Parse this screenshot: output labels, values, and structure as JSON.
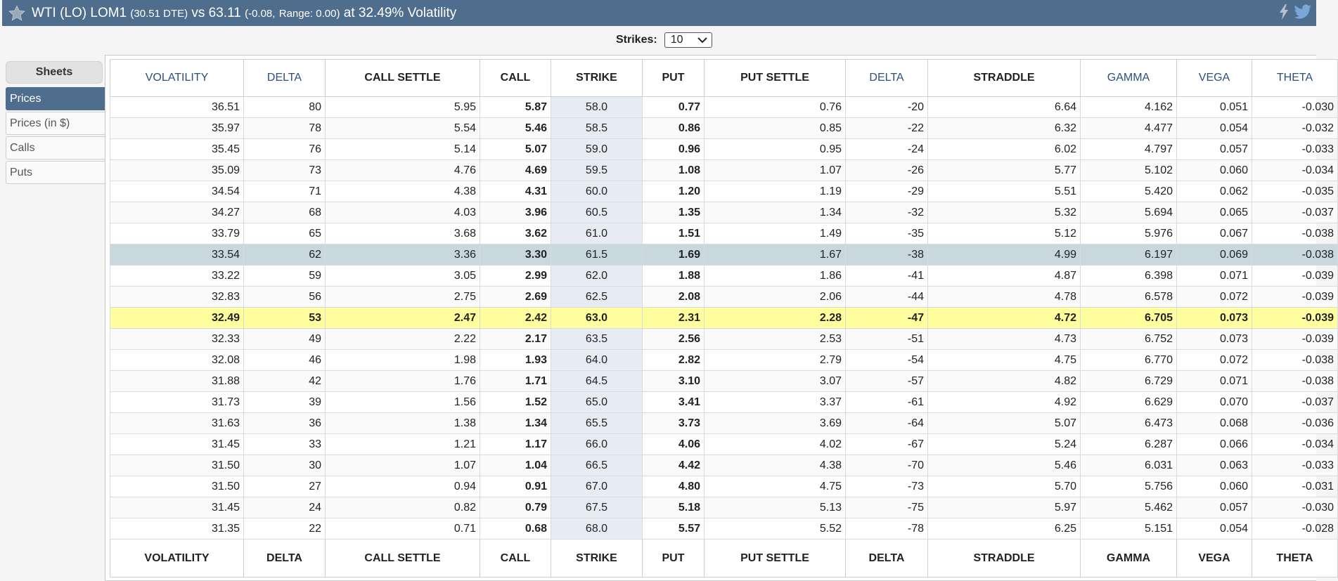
{
  "header": {
    "symbol": "WTI (LO) LOM1",
    "dte": "(30.51 DTE)",
    "vs_label": "vs 63.11",
    "change": "(-0.08,",
    "range": "Range: 0.00)",
    "volatility_text": "at 32.49% Volatility",
    "icons": [
      "star-icon",
      "lightning-icon",
      "twitter-icon"
    ],
    "color": "#4f6d8d"
  },
  "strikes": {
    "label": "Strikes:",
    "selected": "10"
  },
  "sidebar": {
    "title": "Sheets",
    "items": [
      {
        "label": "Prices",
        "active": true
      },
      {
        "label": "Prices (in $)",
        "active": false
      },
      {
        "label": "Calls",
        "active": false
      },
      {
        "label": "Puts",
        "active": false
      }
    ]
  },
  "table": {
    "columns": [
      "VOLATILITY",
      "DELTA",
      "CALL SETTLE",
      "CALL",
      "STRIKE",
      "PUT",
      "PUT SETTLE",
      "DELTA",
      "STRADDLE",
      "GAMMA",
      "VEGA",
      "THETA"
    ],
    "rows": [
      [
        "36.51",
        "80",
        "5.95",
        "5.87",
        "58.0",
        "0.77",
        "0.76",
        "-20",
        "6.64",
        "4.162",
        "0.051",
        "-0.030"
      ],
      [
        "35.97",
        "78",
        "5.54",
        "5.46",
        "58.5",
        "0.86",
        "0.85",
        "-22",
        "6.32",
        "4.477",
        "0.054",
        "-0.032"
      ],
      [
        "35.45",
        "76",
        "5.14",
        "5.07",
        "59.0",
        "0.96",
        "0.95",
        "-24",
        "6.02",
        "4.797",
        "0.057",
        "-0.033"
      ],
      [
        "35.09",
        "73",
        "4.76",
        "4.69",
        "59.5",
        "1.08",
        "1.07",
        "-26",
        "5.77",
        "5.102",
        "0.060",
        "-0.034"
      ],
      [
        "34.54",
        "71",
        "4.38",
        "4.31",
        "60.0",
        "1.20",
        "1.19",
        "-29",
        "5.51",
        "5.420",
        "0.062",
        "-0.035"
      ],
      [
        "34.27",
        "68",
        "4.03",
        "3.96",
        "60.5",
        "1.35",
        "1.34",
        "-32",
        "5.32",
        "5.694",
        "0.065",
        "-0.037"
      ],
      [
        "33.79",
        "65",
        "3.68",
        "3.62",
        "61.0",
        "1.51",
        "1.49",
        "-35",
        "5.12",
        "5.976",
        "0.067",
        "-0.038"
      ],
      [
        "33.54",
        "62",
        "3.36",
        "3.30",
        "61.5",
        "1.69",
        "1.67",
        "-38",
        "4.99",
        "6.197",
        "0.069",
        "-0.038"
      ],
      [
        "33.22",
        "59",
        "3.05",
        "2.99",
        "62.0",
        "1.88",
        "1.86",
        "-41",
        "4.87",
        "6.398",
        "0.071",
        "-0.039"
      ],
      [
        "32.83",
        "56",
        "2.75",
        "2.69",
        "62.5",
        "2.08",
        "2.06",
        "-44",
        "4.78",
        "6.578",
        "0.072",
        "-0.039"
      ],
      [
        "32.49",
        "53",
        "2.47",
        "2.42",
        "63.0",
        "2.31",
        "2.28",
        "-47",
        "4.72",
        "6.705",
        "0.073",
        "-0.039"
      ],
      [
        "32.33",
        "49",
        "2.22",
        "2.17",
        "63.5",
        "2.56",
        "2.53",
        "-51",
        "4.73",
        "6.752",
        "0.073",
        "-0.039"
      ],
      [
        "32.08",
        "46",
        "1.98",
        "1.93",
        "64.0",
        "2.82",
        "2.79",
        "-54",
        "4.75",
        "6.770",
        "0.072",
        "-0.038"
      ],
      [
        "31.88",
        "42",
        "1.76",
        "1.71",
        "64.5",
        "3.10",
        "3.07",
        "-57",
        "4.82",
        "6.729",
        "0.071",
        "-0.038"
      ],
      [
        "31.73",
        "39",
        "1.56",
        "1.52",
        "65.0",
        "3.41",
        "3.37",
        "-61",
        "4.92",
        "6.629",
        "0.070",
        "-0.037"
      ],
      [
        "31.63",
        "36",
        "1.38",
        "1.34",
        "65.5",
        "3.73",
        "3.69",
        "-64",
        "5.07",
        "6.473",
        "0.068",
        "-0.036"
      ],
      [
        "31.45",
        "33",
        "1.21",
        "1.17",
        "66.0",
        "4.06",
        "4.02",
        "-67",
        "5.24",
        "6.287",
        "0.066",
        "-0.034"
      ],
      [
        "31.50",
        "30",
        "1.07",
        "1.04",
        "66.5",
        "4.42",
        "4.38",
        "-70",
        "5.46",
        "6.031",
        "0.063",
        "-0.033"
      ],
      [
        "31.50",
        "27",
        "0.94",
        "0.91",
        "67.0",
        "4.80",
        "4.75",
        "-73",
        "5.70",
        "5.756",
        "0.060",
        "-0.031"
      ],
      [
        "31.45",
        "24",
        "0.82",
        "0.79",
        "67.5",
        "5.18",
        "5.13",
        "-75",
        "5.97",
        "5.462",
        "0.057",
        "-0.030"
      ],
      [
        "31.35",
        "22",
        "0.71",
        "0.68",
        "68.0",
        "5.57",
        "5.52",
        "-78",
        "6.25",
        "5.151",
        "0.054",
        "-0.028"
      ]
    ],
    "atm_row_index": 7,
    "current_row_index": 10,
    "highlight_color": "#ffff9e",
    "atm_color": "#c9d8dd"
  }
}
